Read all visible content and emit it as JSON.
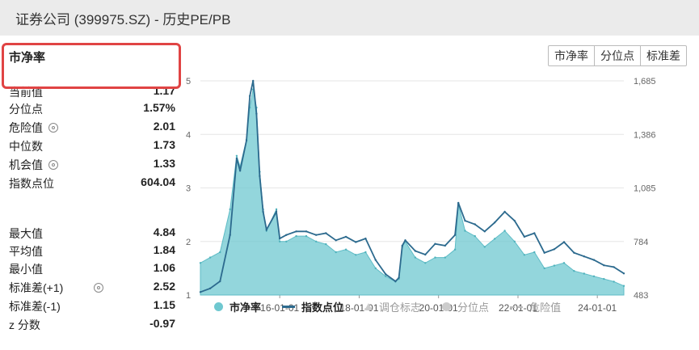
{
  "header": {
    "title": "证券公司 (399975.SZ) - 历史PE/PB"
  },
  "section": {
    "title": "市净率"
  },
  "buttons": [
    {
      "label": "市净率"
    },
    {
      "label": "分位点"
    },
    {
      "label": "标准差"
    }
  ],
  "stats_top": [
    {
      "label": "当前值",
      "value": "1.17",
      "gear": false
    },
    {
      "label": "分位点",
      "value": "1.57%",
      "gear": false
    },
    {
      "label": "危险值",
      "value": "2.01",
      "gear": true
    },
    {
      "label": "中位数",
      "value": "1.73",
      "gear": false
    },
    {
      "label": "机会值",
      "value": "1.33",
      "gear": true
    },
    {
      "label": "指数点位",
      "value": "604.04",
      "gear": false
    }
  ],
  "stats_bottom": [
    {
      "label": "最大值",
      "value": "4.84",
      "gear": false
    },
    {
      "label": "平均值",
      "value": "1.84",
      "gear": false
    },
    {
      "label": "最小值",
      "value": "1.06",
      "gear": false
    },
    {
      "label": "标准差(+1)",
      "value": "2.52",
      "gear": true
    },
    {
      "label": "标准差(-1)",
      "value": "1.15",
      "gear": false
    },
    {
      "label": "z 分数",
      "value": "-0.97",
      "gear": false
    }
  ],
  "legend": [
    {
      "label": "市净率",
      "marker": "dot",
      "color": "#6fc8d0",
      "active": true
    },
    {
      "label": "指数点位",
      "marker": "line",
      "color": "#2c6a8e",
      "active": true
    },
    {
      "label": "调仓标志",
      "marker": "triangle",
      "color": "#cccccc",
      "active": false
    },
    {
      "label": "分位点",
      "marker": "dot",
      "color": "#cccccc",
      "active": false
    },
    {
      "label": "危险值",
      "marker": "dash",
      "color": "#bbbbbb",
      "active": false
    }
  ],
  "chart_data": {
    "type": "area",
    "left_axis": {
      "ticks": [
        "5",
        "4",
        "3",
        "2",
        "1"
      ],
      "min": 1,
      "max": 5
    },
    "right_axis": {
      "ticks": [
        "1,685",
        "1,386",
        "1,085",
        "784",
        "483"
      ],
      "min": 483,
      "max": 1685
    },
    "x_ticks": [
      "16-01-01",
      "18-01-01",
      "20-01-01",
      "22-01-01",
      "24-01-01"
    ],
    "series": [
      {
        "name": "市净率",
        "axis": "left",
        "color": "#6fc8d0",
        "x": [
          "2014-01",
          "2014-04",
          "2014-07",
          "2014-10",
          "2014-12",
          "2015-01",
          "2015-03",
          "2015-04",
          "2015-05",
          "2015-06",
          "2015-07",
          "2015-08",
          "2015-09",
          "2015-12",
          "2016-01",
          "2016-03",
          "2016-06",
          "2016-09",
          "2016-12",
          "2017-03",
          "2017-06",
          "2017-09",
          "2017-12",
          "2018-03",
          "2018-06",
          "2018-09",
          "2018-12",
          "2019-01",
          "2019-02",
          "2019-03",
          "2019-06",
          "2019-09",
          "2019-12",
          "2020-03",
          "2020-06",
          "2020-07",
          "2020-09",
          "2020-12",
          "2021-03",
          "2021-06",
          "2021-09",
          "2021-12",
          "2022-03",
          "2022-06",
          "2022-09",
          "2022-12",
          "2023-03",
          "2023-06",
          "2023-09",
          "2023-12",
          "2024-03",
          "2024-06",
          "2024-09"
        ],
        "values": [
          1.6,
          1.7,
          1.8,
          2.6,
          3.6,
          3.4,
          3.9,
          4.5,
          4.84,
          4.5,
          3.3,
          2.6,
          2.2,
          2.6,
          2.0,
          2.0,
          2.1,
          2.1,
          2.0,
          1.95,
          1.8,
          1.85,
          1.75,
          1.8,
          1.5,
          1.35,
          1.25,
          1.3,
          1.9,
          2.0,
          1.7,
          1.6,
          1.7,
          1.7,
          1.85,
          2.7,
          2.2,
          2.1,
          1.9,
          2.05,
          2.2,
          2.0,
          1.75,
          1.8,
          1.5,
          1.55,
          1.6,
          1.45,
          1.4,
          1.35,
          1.3,
          1.25,
          1.17
        ]
      },
      {
        "name": "指数点位",
        "axis": "right",
        "color": "#2c6a8e",
        "x": [
          "2014-01",
          "2014-04",
          "2014-07",
          "2014-10",
          "2014-12",
          "2015-01",
          "2015-03",
          "2015-04",
          "2015-05",
          "2015-06",
          "2015-07",
          "2015-08",
          "2015-09",
          "2015-12",
          "2016-01",
          "2016-03",
          "2016-06",
          "2016-09",
          "2016-12",
          "2017-03",
          "2017-06",
          "2017-09",
          "2017-12",
          "2018-03",
          "2018-06",
          "2018-09",
          "2018-12",
          "2019-01",
          "2019-02",
          "2019-03",
          "2019-06",
          "2019-09",
          "2019-12",
          "2020-03",
          "2020-06",
          "2020-07",
          "2020-09",
          "2020-12",
          "2021-03",
          "2021-06",
          "2021-09",
          "2021-12",
          "2022-03",
          "2022-06",
          "2022-09",
          "2022-12",
          "2023-03",
          "2023-06",
          "2023-09",
          "2023-12",
          "2024-03",
          "2024-06",
          "2024-09"
        ],
        "values": [
          500,
          520,
          560,
          820,
          1250,
          1180,
          1350,
          1600,
          1685,
          1500,
          1150,
          950,
          850,
          950,
          800,
          820,
          840,
          840,
          820,
          830,
          790,
          810,
          780,
          800,
          680,
          600,
          560,
          580,
          760,
          790,
          730,
          710,
          770,
          760,
          820,
          1000,
          900,
          880,
          840,
          890,
          950,
          900,
          810,
          830,
          720,
          740,
          780,
          720,
          700,
          680,
          650,
          640,
          604.04
        ]
      }
    ]
  }
}
